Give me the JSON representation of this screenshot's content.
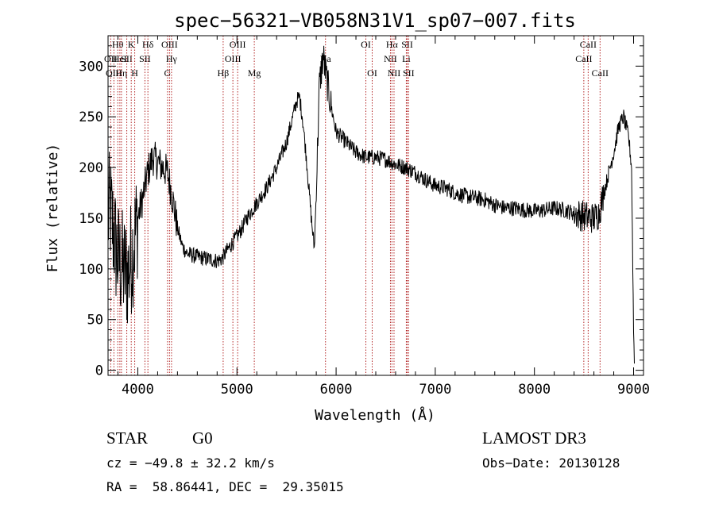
{
  "chart_data": {
    "type": "line",
    "title": "spec−56321−VB058N31V1_sp07−007.fits",
    "xlabel": "Wavelength (Å)",
    "ylabel": "Flux (relative)",
    "xlim": [
      3700,
      9100
    ],
    "ylim": [
      -5,
      330
    ],
    "xticks": [
      4000,
      5000,
      6000,
      7000,
      8000,
      9000
    ],
    "yticks": [
      0,
      50,
      100,
      150,
      200,
      250,
      300
    ],
    "grid": false,
    "line_color": "#000000",
    "marker_color": "#b22222",
    "spectrum_anchors": [
      [
        3700,
        150
      ],
      [
        3720,
        160
      ],
      [
        3750,
        140
      ],
      [
        3780,
        120
      ],
      [
        3800,
        110
      ],
      [
        3850,
        100
      ],
      [
        3900,
        95
      ],
      [
        3950,
        120
      ],
      [
        4000,
        150
      ],
      [
        4050,
        170
      ],
      [
        4100,
        195
      ],
      [
        4150,
        210
      ],
      [
        4200,
        205
      ],
      [
        4250,
        200
      ],
      [
        4300,
        195
      ],
      [
        4350,
        170
      ],
      [
        4400,
        140
      ],
      [
        4450,
        122
      ],
      [
        4500,
        115
      ],
      [
        4600,
        112
      ],
      [
        4700,
        110
      ],
      [
        4800,
        108
      ],
      [
        4850,
        110
      ],
      [
        4900,
        118
      ],
      [
        4950,
        125
      ],
      [
        5000,
        132
      ],
      [
        5050,
        140
      ],
      [
        5100,
        150
      ],
      [
        5200,
        165
      ],
      [
        5300,
        180
      ],
      [
        5400,
        200
      ],
      [
        5500,
        225
      ],
      [
        5550,
        245
      ],
      [
        5600,
        265
      ],
      [
        5630,
        270
      ],
      [
        5660,
        250
      ],
      [
        5700,
        210
      ],
      [
        5750,
        150
      ],
      [
        5780,
        120
      ],
      [
        5800,
        175
      ],
      [
        5830,
        280
      ],
      [
        5870,
        310
      ],
      [
        5900,
        290
      ],
      [
        5950,
        260
      ],
      [
        6000,
        235
      ],
      [
        6100,
        225
      ],
      [
        6200,
        215
      ],
      [
        6300,
        210
      ],
      [
        6400,
        210
      ],
      [
        6500,
        208
      ],
      [
        6600,
        203
      ],
      [
        6700,
        200
      ],
      [
        6800,
        195
      ],
      [
        6900,
        188
      ],
      [
        7000,
        182
      ],
      [
        7100,
        180
      ],
      [
        7200,
        175
      ],
      [
        7300,
        172
      ],
      [
        7400,
        170
      ],
      [
        7500,
        168
      ],
      [
        7600,
        163
      ],
      [
        7700,
        160
      ],
      [
        7800,
        160
      ],
      [
        7900,
        158
      ],
      [
        8000,
        157
      ],
      [
        8100,
        158
      ],
      [
        8200,
        160
      ],
      [
        8300,
        158
      ],
      [
        8400,
        155
      ],
      [
        8500,
        152
      ],
      [
        8600,
        150
      ],
      [
        8650,
        155
      ],
      [
        8700,
        175
      ],
      [
        8750,
        195
      ],
      [
        8800,
        215
      ],
      [
        8850,
        240
      ],
      [
        8900,
        250
      ],
      [
        8950,
        230
      ],
      [
        8980,
        200
      ],
      [
        9000,
        40
      ],
      [
        9010,
        0
      ]
    ],
    "lines": [
      {
        "label": "OII",
        "x": 3727,
        "row": 1
      },
      {
        "label": "OIII",
        "x": 3759,
        "row": 2
      },
      {
        "label": "Hθ",
        "x": 3798,
        "row": 0
      },
      {
        "label": "HeI",
        "x": 3819,
        "row": 1
      },
      {
        "label": "Hη",
        "x": 3835,
        "row": 2
      },
      {
        "label": "SII",
        "x": 3889,
        "row": 1
      },
      {
        "label": "K",
        "x": 3934,
        "row": 0
      },
      {
        "label": "H",
        "x": 3969,
        "row": 2
      },
      {
        "label": "Hδ",
        "x": 4102,
        "row": 0
      },
      {
        "label": "SII",
        "x": 4072,
        "row": 1
      },
      {
        "label": "G",
        "x": 4300,
        "row": 2
      },
      {
        "label": "OIII",
        "x": 4320,
        "row": 0
      },
      {
        "label": "Hγ",
        "x": 4340,
        "row": 1
      },
      {
        "label": "Hβ",
        "x": 4861,
        "row": 2
      },
      {
        "label": "OIII",
        "x": 4959,
        "row": 1
      },
      {
        "label": "OIII",
        "x": 5007,
        "row": 0
      },
      {
        "label": "Mg",
        "x": 5175,
        "row": 2
      },
      {
        "label": "Na",
        "x": 5893,
        "row": 1
      },
      {
        "label": "OI",
        "x": 6300,
        "row": 0
      },
      {
        "label": "OI",
        "x": 6364,
        "row": 2
      },
      {
        "label": "NII",
        "x": 6548,
        "row": 1
      },
      {
        "label": "Hα",
        "x": 6563,
        "row": 0
      },
      {
        "label": "NII",
        "x": 6584,
        "row": 2
      },
      {
        "label": "SII",
        "x": 6717,
        "row": 0
      },
      {
        "label": "Li",
        "x": 6708,
        "row": 1
      },
      {
        "label": "SII",
        "x": 6731,
        "row": 2
      },
      {
        "label": "CaII",
        "x": 8498,
        "row": 1
      },
      {
        "label": "CaII",
        "x": 8542,
        "row": 0
      },
      {
        "label": "CaII",
        "x": 8662,
        "row": 2
      }
    ]
  },
  "info": {
    "class": "STAR",
    "subclass": "G0",
    "survey": "LAMOST DR3",
    "cz": "cz = −49.8 ± 32.2 km/s",
    "obs_date": "Obs−Date: 20130128",
    "radec": "RA =  58.86441, DEC =  29.35015"
  }
}
